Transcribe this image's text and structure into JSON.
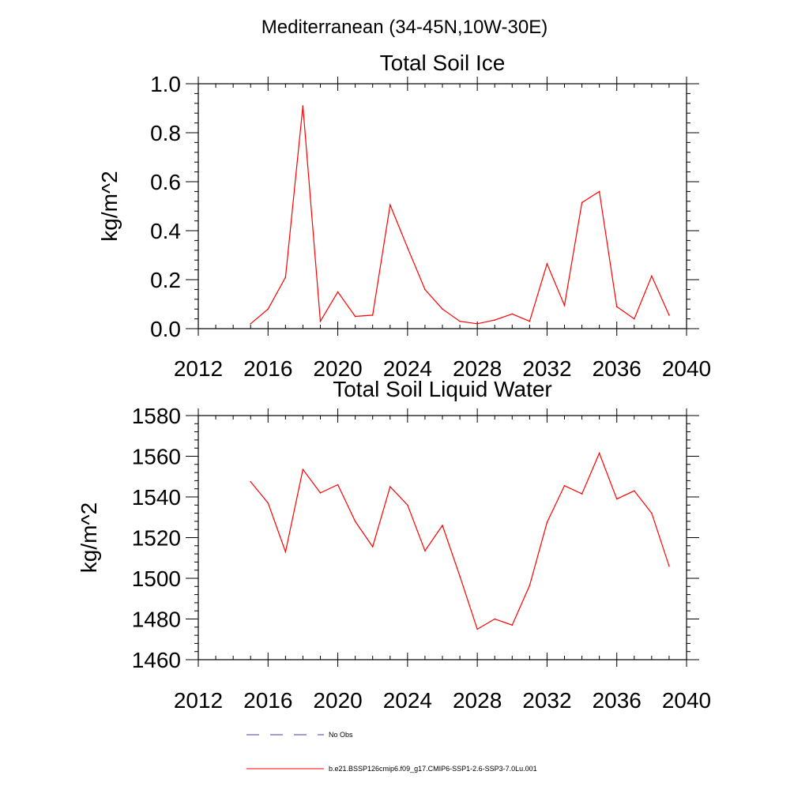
{
  "figure_title": "Mediterranean (34-45N,10W-30E)",
  "chart_data": [
    {
      "type": "line",
      "title": "Total Soil Ice",
      "xlabel": "",
      "ylabel": "kg/m^2",
      "xlim": [
        2012,
        2040
      ],
      "ylim": [
        0.0,
        1.0
      ],
      "x_ticks": [
        2012,
        2016,
        2020,
        2024,
        2028,
        2032,
        2036,
        2040
      ],
      "x_tick_labels": [
        "2012",
        "2016",
        "2020",
        "2024",
        "2028",
        "2032",
        "2036",
        "2040"
      ],
      "y_ticks": [
        0.0,
        0.2,
        0.4,
        0.6,
        0.8,
        1.0
      ],
      "y_tick_labels": [
        "0.0",
        "0.2",
        "0.4",
        "0.6",
        "0.8",
        "1.0"
      ],
      "x": [
        2015,
        2016,
        2017,
        2018,
        2019,
        2020,
        2021,
        2022,
        2023,
        2024,
        2025,
        2026,
        2027,
        2028,
        2029,
        2030,
        2031,
        2032,
        2033,
        2034,
        2035,
        2036,
        2037,
        2038,
        2039
      ],
      "series": [
        {
          "name": "b.e21.BSSP126cmip6.f09_g17.CMIP6-SSP1-2.6-SSP3-7.0Lu.001",
          "color": "#ff0000",
          "values": [
            0.02,
            0.08,
            0.21,
            0.91,
            0.03,
            0.15,
            0.05,
            0.055,
            0.505,
            0.33,
            0.16,
            0.08,
            0.03,
            0.02,
            0.035,
            0.06,
            0.03,
            0.265,
            0.095,
            0.515,
            0.56,
            0.09,
            0.04,
            0.215,
            0.055
          ]
        }
      ]
    },
    {
      "type": "line",
      "title": "Total Soil Liquid Water",
      "xlabel": "",
      "ylabel": "kg/m^2",
      "xlim": [
        2012,
        2040
      ],
      "ylim": [
        1460,
        1580
      ],
      "x_ticks": [
        2012,
        2016,
        2020,
        2024,
        2028,
        2032,
        2036,
        2040
      ],
      "x_tick_labels": [
        "2012",
        "2016",
        "2020",
        "2024",
        "2028",
        "2032",
        "2036",
        "2040"
      ],
      "y_ticks": [
        1460,
        1480,
        1500,
        1520,
        1540,
        1560,
        1580
      ],
      "y_tick_labels": [
        "1460",
        "1480",
        "1500",
        "1520",
        "1540",
        "1560",
        "1580"
      ],
      "x": [
        2015,
        2016,
        2017,
        2018,
        2019,
        2020,
        2021,
        2022,
        2023,
        2024,
        2025,
        2026,
        2027,
        2028,
        2029,
        2030,
        2031,
        2032,
        2033,
        2034,
        2035,
        2036,
        2037,
        2038,
        2039
      ],
      "series": [
        {
          "name": "b.e21.BSSP126cmip6.f09_g17.CMIP6-SSP1-2.6-SSP3-7.0Lu.001",
          "color": "#ff0000",
          "values": [
            1547.5,
            1537,
            1513,
            1553.5,
            1542,
            1546,
            1528,
            1515.5,
            1545,
            1536,
            1513.5,
            1526,
            1501,
            1475,
            1480,
            1477,
            1496.5,
            1527.5,
            1545.5,
            1541.5,
            1561.5,
            1539,
            1543,
            1532,
            1506
          ]
        }
      ]
    }
  ],
  "legend": [
    {
      "label": "No Obs",
      "color": "#3c3ca0",
      "style": "dashed"
    },
    {
      "label": "b.e21.BSSP126cmip6.f09_g17.CMIP6-SSP1-2.6-SSP3-7.0Lu.001",
      "color": "#ff0000",
      "style": "solid"
    }
  ]
}
